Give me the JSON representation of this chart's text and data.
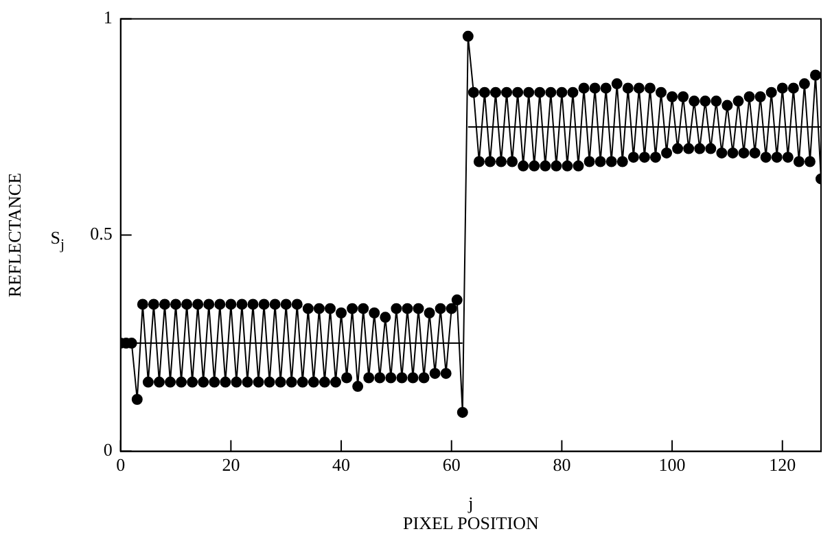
{
  "chart_data": {
    "type": "line",
    "xlabel": "PIXEL POSITION",
    "ylabel": "REFLECTANCE",
    "annotations": [
      "S$_{j}$",
      "j"
    ],
    "xlim": [
      0,
      127
    ],
    "xticks": [
      0,
      20,
      40,
      60,
      80,
      100,
      120
    ],
    "ylim": [
      0,
      1
    ],
    "yticks": [
      0,
      0.5,
      1
    ],
    "grid": false,
    "legend": false,
    "series": [
      {
        "color": "#000000",
        "marker": "circle",
        "x": [
          0,
          1,
          2,
          3,
          4,
          5,
          6,
          7,
          8,
          9,
          10,
          11,
          12,
          13,
          14,
          15,
          16,
          17,
          18,
          19,
          20,
          21,
          22,
          23,
          24,
          25,
          26,
          27,
          28,
          29,
          30,
          31,
          32,
          33,
          34,
          35,
          36,
          37,
          38,
          39,
          40,
          41,
          42,
          43,
          44,
          45,
          46,
          47,
          48,
          49,
          50,
          51,
          52,
          53,
          54,
          55,
          56,
          57,
          58,
          59,
          60,
          61,
          62,
          63,
          64,
          65,
          66,
          67,
          68,
          69,
          70,
          71,
          72,
          73,
          74,
          75,
          76,
          77,
          78,
          79,
          80,
          81,
          82,
          83,
          84,
          85,
          86,
          87,
          88,
          89,
          90,
          91,
          92,
          93,
          94,
          95,
          96,
          97,
          98,
          99,
          100,
          101,
          102,
          103,
          104,
          105,
          106,
          107,
          108,
          109,
          110,
          111,
          112,
          113,
          114,
          115,
          116,
          117,
          118,
          119,
          120,
          121,
          122,
          123,
          124,
          125,
          126,
          127
        ],
        "values": [
          0.25,
          0.25,
          0.25,
          0.12,
          0.34,
          0.16,
          0.34,
          0.16,
          0.34,
          0.16,
          0.34,
          0.16,
          0.34,
          0.16,
          0.34,
          0.16,
          0.34,
          0.16,
          0.34,
          0.16,
          0.34,
          0.16,
          0.34,
          0.16,
          0.34,
          0.16,
          0.34,
          0.16,
          0.34,
          0.16,
          0.34,
          0.16,
          0.34,
          0.16,
          0.33,
          0.16,
          0.33,
          0.16,
          0.33,
          0.16,
          0.32,
          0.17,
          0.33,
          0.15,
          0.33,
          0.17,
          0.32,
          0.17,
          0.31,
          0.17,
          0.33,
          0.17,
          0.33,
          0.17,
          0.33,
          0.17,
          0.32,
          0.18,
          0.33,
          0.18,
          0.33,
          0.35,
          0.09,
          0.96,
          0.83,
          0.67,
          0.83,
          0.67,
          0.83,
          0.67,
          0.83,
          0.67,
          0.83,
          0.66,
          0.83,
          0.66,
          0.83,
          0.66,
          0.83,
          0.66,
          0.83,
          0.66,
          0.83,
          0.66,
          0.84,
          0.67,
          0.84,
          0.67,
          0.84,
          0.67,
          0.85,
          0.67,
          0.84,
          0.68,
          0.84,
          0.68,
          0.84,
          0.68,
          0.83,
          0.69,
          0.82,
          0.7,
          0.82,
          0.7,
          0.81,
          0.7,
          0.81,
          0.7,
          0.81,
          0.69,
          0.8,
          0.69,
          0.81,
          0.69,
          0.82,
          0.69,
          0.82,
          0.68,
          0.83,
          0.68,
          0.84,
          0.68,
          0.84,
          0.67,
          0.85,
          0.67,
          0.87,
          0.63
        ]
      },
      {
        "color": "#000000",
        "marker": "none",
        "x": [
          0,
          62
        ],
        "values": [
          0.25,
          0.25
        ]
      },
      {
        "color": "#000000",
        "marker": "none",
        "x": [
          63,
          127
        ],
        "values": [
          0.75,
          0.75
        ]
      }
    ]
  }
}
